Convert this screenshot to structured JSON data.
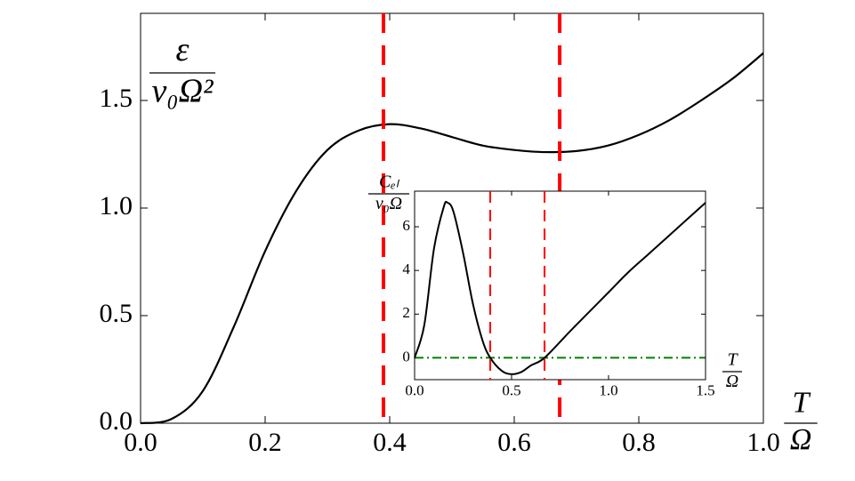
{
  "chart_data": [
    {
      "type": "line",
      "xlabel": {
        "numerator": "T",
        "denominator": "Ω"
      },
      "ylabel": {
        "numerator": "ε",
        "denominator": "ν₀Ω²"
      },
      "xlim": [
        0,
        1
      ],
      "ylim": [
        0,
        1.905
      ],
      "xticks": [
        {
          "value": 0,
          "label": "0.0"
        },
        0.2,
        0.4,
        0.6,
        0.8,
        {
          "value": 1,
          "label": "1.0"
        }
      ],
      "yticks": [
        {
          "value": 0,
          "label": "0.0"
        },
        0.5,
        {
          "value": 1,
          "label": "1.0"
        },
        1.5
      ],
      "series": [
        {
          "color": "#000000",
          "x": [
            0,
            0.05,
            0.1,
            0.15,
            0.2,
            0.25,
            0.3,
            0.35,
            0.4,
            0.45,
            0.5,
            0.55,
            0.6,
            0.65,
            0.7,
            0.75,
            0.8,
            0.85,
            0.9,
            0.95,
            1.0
          ],
          "values": [
            0,
            0.02,
            0.15,
            0.45,
            0.8,
            1.08,
            1.27,
            1.36,
            1.39,
            1.37,
            1.33,
            1.29,
            1.27,
            1.26,
            1.265,
            1.29,
            1.34,
            1.41,
            1.5,
            1.6,
            1.72
          ]
        }
      ],
      "vlines": [
        0.39,
        0.673
      ],
      "vline_color": "#ff0000"
    },
    {
      "type": "line",
      "xlabel": {
        "numerator": "T",
        "denominator": "Ω"
      },
      "ylabel": {
        "numerator": "Cₑₗ",
        "denominator": "ν₀Ω"
      },
      "xlim": [
        0,
        1.5
      ],
      "ylim": [
        -1,
        7.63
      ],
      "xticks": [
        {
          "value": 0,
          "label": "0.0"
        },
        0.5,
        {
          "value": 1,
          "label": "1.0"
        },
        1.5
      ],
      "yticks": [
        0,
        2,
        4,
        6
      ],
      "series": [
        {
          "color": "#000000",
          "x": [
            0,
            0.05,
            0.1,
            0.15,
            0.17,
            0.2,
            0.25,
            0.3,
            0.35,
            0.39,
            0.45,
            0.5,
            0.55,
            0.6,
            0.67,
            0.8,
            0.9,
            1.0,
            1.1,
            1.2,
            1.3,
            1.4,
            1.5
          ],
          "values": [
            0,
            1.5,
            5.0,
            6.9,
            7.1,
            6.7,
            4.8,
            2.5,
            0.8,
            0,
            -0.6,
            -0.75,
            -0.65,
            -0.35,
            0,
            1.2,
            2.1,
            3.0,
            3.9,
            4.7,
            5.5,
            6.3,
            7.1
          ]
        }
      ],
      "vlines": [
        0.39,
        0.67
      ],
      "vline_color": "#ff0000",
      "hlines": [
        0
      ],
      "hline_color": "#008000"
    }
  ]
}
